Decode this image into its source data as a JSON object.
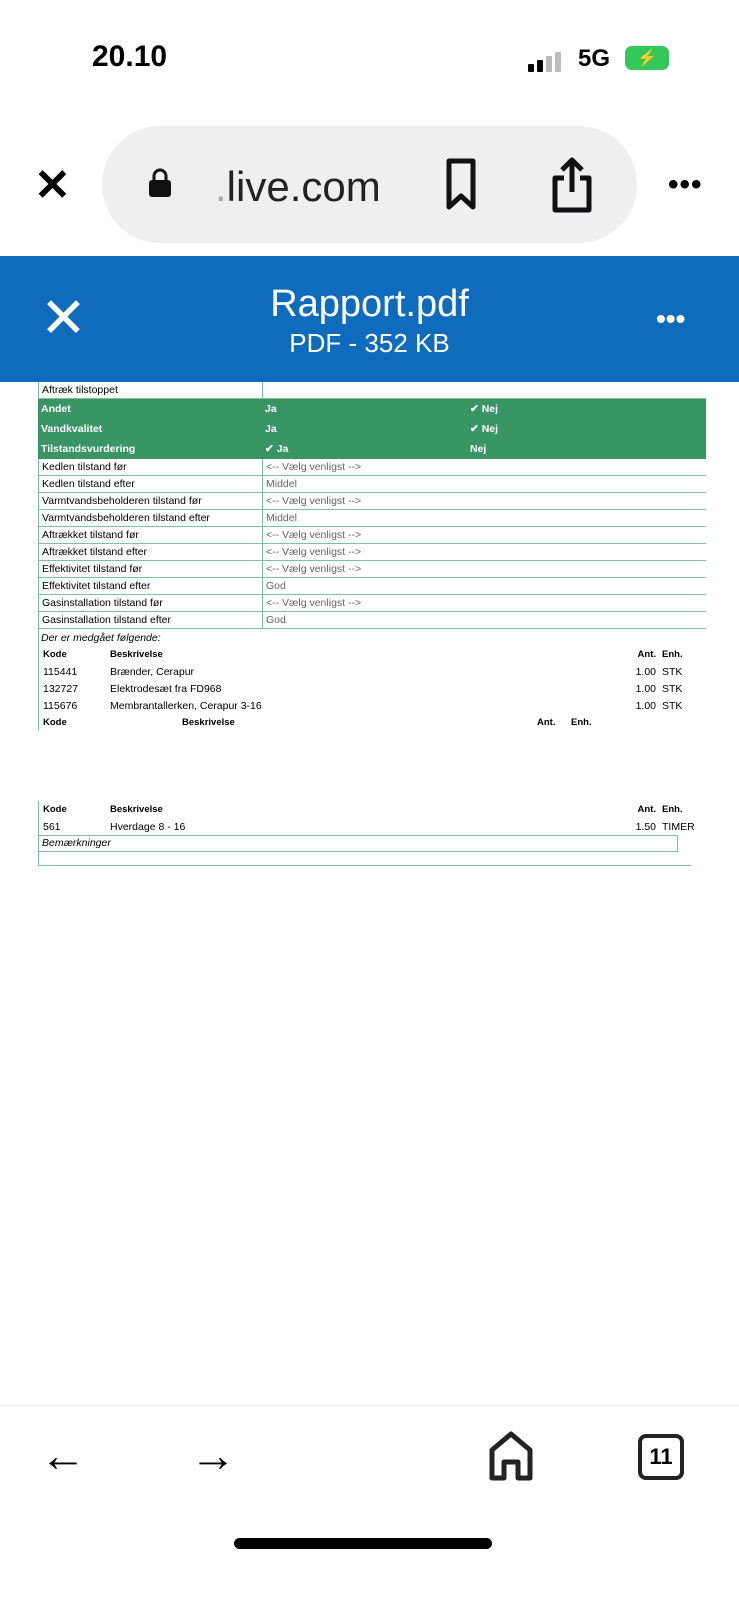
{
  "status": {
    "time": "20.10",
    "network": "5G"
  },
  "browser": {
    "url_dim": ".",
    "url": "live.com",
    "tabs_count": "11"
  },
  "viewer": {
    "title": "Rapport.pdf",
    "subtitle": "PDF - 352 KB"
  },
  "doc": {
    "top_row": "Aftræk tilstoppet",
    "green_rows": [
      {
        "label": "Andet",
        "ja": "Ja",
        "nej": "Nej",
        "checked": "nej"
      },
      {
        "label": "Vandkvalitet",
        "ja": "Ja",
        "nej": "Nej",
        "checked": "nej"
      },
      {
        "label": "Tilstandsvurdering",
        "ja": "Ja",
        "nej": "Nej",
        "checked": "ja"
      }
    ],
    "rows": [
      {
        "label": "Kedlen tilstand før",
        "value": "<-- Vælg venligst -->"
      },
      {
        "label": "Kedlen tilstand efter",
        "value": "Middel"
      },
      {
        "label": "Varmtvandsbeholderen tilstand før",
        "value": "<-- Vælg venligst -->"
      },
      {
        "label": "Varmtvandsbeholderen tilstand efter",
        "value": "Middel"
      },
      {
        "label": "Aftrækket tilstand før",
        "value": "<-- Vælg venligst -->"
      },
      {
        "label": "Aftrækket tilstand efter",
        "value": "<-- Vælg venligst -->"
      },
      {
        "label": "Effektivitet tilstand før",
        "value": "<-- Vælg venligst -->"
      },
      {
        "label": "Effektivitet tilstand efter",
        "value": "God"
      },
      {
        "label": "Gasinstallation tilstand før",
        "value": "<-- Vælg venligst -->"
      },
      {
        "label": "Gasinstallation tilstand efter",
        "value": "God"
      }
    ],
    "used_heading": "Der er medgået følgende:",
    "headers": {
      "code": "Kode",
      "desc": "Beskrivelse",
      "qty": "Ant.",
      "unit": "Enh."
    },
    "materials": [
      {
        "code": "115441",
        "desc": "Brænder, Cerapur",
        "qty": "1.00",
        "unit": "STK"
      },
      {
        "code": "132727",
        "desc": "Elektrodesæt fra FD968",
        "qty": "1.00",
        "unit": "STK"
      },
      {
        "code": "115676",
        "desc": "Membrantallerken, Cerapur 3-16",
        "qty": "1.00",
        "unit": "STK"
      }
    ],
    "labor": [
      {
        "code": "561",
        "desc": "Hverdage 8 - 16",
        "qty": "1.50",
        "unit": "TIMER"
      }
    ],
    "remarks_label": "Bemærkninger"
  },
  "colors": {
    "header_blue": "#0f6cbd",
    "table_green": "#3a9565"
  }
}
